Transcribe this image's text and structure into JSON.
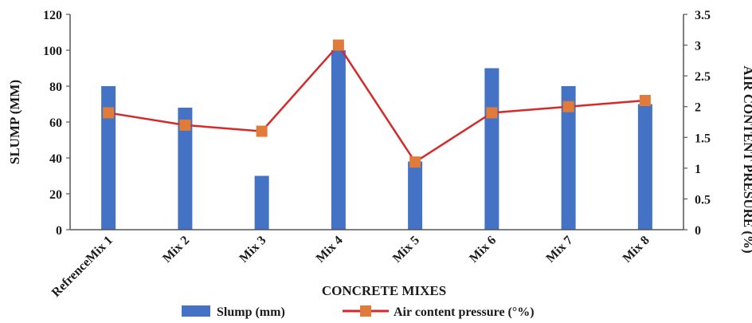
{
  "chart_data": {
    "type": "bar",
    "categories": [
      "RefrenceMix 1",
      "Mix 2",
      "Mix 3",
      "Mix 4",
      "Mix 5",
      "Mix 6",
      "Mix 7",
      "Mix 8"
    ],
    "series": [
      {
        "name": "Slump (mm)",
        "type": "bar",
        "axis": "left",
        "color": "#4472C4",
        "values": [
          80,
          68,
          30,
          100,
          38,
          90,
          80,
          70
        ]
      },
      {
        "name": "Air content pressure (°%)",
        "type": "line",
        "axis": "right",
        "color": "#D42A2A",
        "marker_color": "#E07B39",
        "values": [
          1.9,
          1.7,
          1.6,
          3.0,
          1.1,
          1.9,
          2.0,
          2.1
        ]
      }
    ],
    "xlabel": "CONCRETE MIXES",
    "ylabel": "SLUMP (MM)",
    "y2label": "AIR CONTENT PRESURE (%)",
    "ylim": [
      0,
      120
    ],
    "y2lim": [
      0,
      3.5
    ],
    "yticks": [
      "0",
      "20",
      "40",
      "60",
      "80",
      "100",
      "120"
    ],
    "y2ticks": [
      "0",
      "0.5",
      "1",
      "1.5",
      "2",
      "2.5",
      "3",
      "3.5"
    ],
    "grid": false,
    "legend_position": "bottom"
  }
}
